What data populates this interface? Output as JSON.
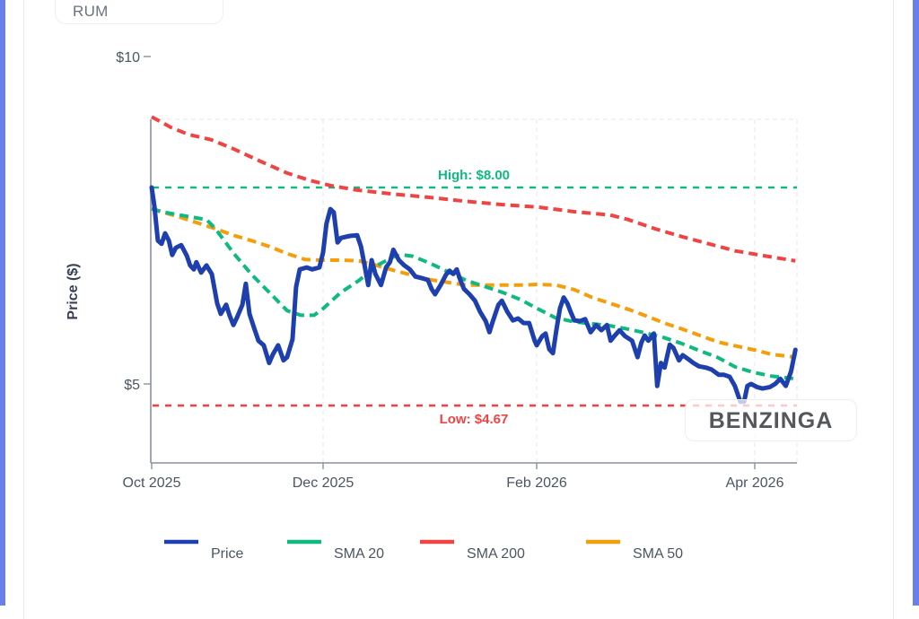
{
  "ticker": "RUM",
  "watermark": "BENZINGA",
  "colors": {
    "price": "#1e40af",
    "sma20": "#10b981",
    "sma200": "#ef4444",
    "sma50": "#f59e0b",
    "frame": "#6b7fea"
  },
  "chart_data": {
    "type": "line",
    "title": "",
    "xlabel": "",
    "ylabel": "Price ($)",
    "x_unit": "days since 2025-10-01",
    "ylim": [
      3.85,
      10.0
    ],
    "xlim": [
      0,
      193
    ],
    "grid": true,
    "legend_position": "bottom",
    "y_ticks": [
      {
        "value": 10,
        "label": "$10"
      },
      {
        "value": 5,
        "label": "$5"
      }
    ],
    "x_ticks": [
      {
        "day": 0,
        "label": "Oct 2025"
      },
      {
        "day": 61,
        "label": "Dec 2025"
      },
      {
        "day": 123,
        "label": "Feb 2026"
      },
      {
        "day": 182,
        "label": "Apr 2026"
      }
    ],
    "reference_lines": [
      {
        "name": "high",
        "label": "High: $8.00",
        "value": 8.0,
        "color": "#10b981"
      },
      {
        "name": "low",
        "label": "Low: $4.67",
        "value": 4.67,
        "color": "#ef4444"
      }
    ],
    "series": [
      {
        "name": "Price",
        "key": "price",
        "style": "solid",
        "points": [
          [
            0,
            8.0
          ],
          [
            1,
            7.71
          ],
          [
            2.2,
            7.19
          ],
          [
            3.5,
            7.14
          ],
          [
            4.8,
            7.3
          ],
          [
            6.1,
            7.19
          ],
          [
            7.3,
            6.97
          ],
          [
            8.6,
            7.08
          ],
          [
            10.5,
            7.12
          ],
          [
            12.5,
            6.96
          ],
          [
            13.7,
            6.81
          ],
          [
            15,
            6.75
          ],
          [
            15.9,
            6.86
          ],
          [
            17.6,
            6.7
          ],
          [
            19.5,
            6.81
          ],
          [
            21.4,
            6.68
          ],
          [
            23.3,
            6.23
          ],
          [
            24.6,
            6.07
          ],
          [
            26.5,
            6.21
          ],
          [
            27.8,
            6.04
          ],
          [
            29.1,
            5.9
          ],
          [
            30.3,
            6.01
          ],
          [
            32.3,
            6.21
          ],
          [
            33.5,
            6.53
          ],
          [
            34.8,
            6.07
          ],
          [
            36.4,
            5.86
          ],
          [
            38,
            5.66
          ],
          [
            39.9,
            5.59
          ],
          [
            41.8,
            5.32
          ],
          [
            43.1,
            5.45
          ],
          [
            45,
            5.59
          ],
          [
            46.9,
            5.36
          ],
          [
            48.2,
            5.41
          ],
          [
            50.1,
            5.68
          ],
          [
            51.4,
            6.48
          ],
          [
            52.7,
            6.75
          ],
          [
            55.2,
            6.78
          ],
          [
            57.1,
            6.75
          ],
          [
            59.7,
            6.78
          ],
          [
            61,
            7.01
          ],
          [
            62,
            7.45
          ],
          [
            63.1,
            7.67
          ],
          [
            64.1,
            7.62
          ],
          [
            65.2,
            7.16
          ],
          [
            66.2,
            7.23
          ],
          [
            68.8,
            7.26
          ],
          [
            70.9,
            7.27
          ],
          [
            72,
            7.1
          ],
          [
            73,
            6.82
          ],
          [
            74.1,
            6.51
          ],
          [
            75.1,
            6.89
          ],
          [
            76.2,
            6.68
          ],
          [
            77.8,
            6.51
          ],
          [
            79.3,
            6.78
          ],
          [
            80.4,
            6.86
          ],
          [
            81.4,
            7.05
          ],
          [
            83,
            6.89
          ],
          [
            84.6,
            6.81
          ],
          [
            86.2,
            6.75
          ],
          [
            87.8,
            6.64
          ],
          [
            89.3,
            6.62
          ],
          [
            91.4,
            6.59
          ],
          [
            92.5,
            6.45
          ],
          [
            93.5,
            6.37
          ],
          [
            95.1,
            6.51
          ],
          [
            96.7,
            6.67
          ],
          [
            97.7,
            6.73
          ],
          [
            98.8,
            6.68
          ],
          [
            99.8,
            6.75
          ],
          [
            100.8,
            6.59
          ],
          [
            101.9,
            6.45
          ],
          [
            103.5,
            6.37
          ],
          [
            105.1,
            6.27
          ],
          [
            106.6,
            6.1
          ],
          [
            108.2,
            5.96
          ],
          [
            109.3,
            5.79
          ],
          [
            110.3,
            5.96
          ],
          [
            111.9,
            6.21
          ],
          [
            112.9,
            6.27
          ],
          [
            114.5,
            6.1
          ],
          [
            116.1,
            5.97
          ],
          [
            117.6,
            6.0
          ],
          [
            119.2,
            5.93
          ],
          [
            120.8,
            5.93
          ],
          [
            122.4,
            5.66
          ],
          [
            123,
            5.59
          ],
          [
            124.5,
            5.73
          ],
          [
            125.4,
            5.77
          ],
          [
            126.4,
            5.53
          ],
          [
            127.4,
            5.47
          ],
          [
            128.3,
            5.81
          ],
          [
            129.3,
            6.15
          ],
          [
            130.3,
            6.32
          ],
          [
            131.3,
            6.23
          ],
          [
            132.2,
            6.1
          ],
          [
            133.2,
            5.97
          ],
          [
            134.7,
            5.96
          ],
          [
            136.1,
            5.99
          ],
          [
            137.6,
            5.79
          ],
          [
            139.1,
            5.9
          ],
          [
            140.5,
            5.82
          ],
          [
            142,
            5.9
          ],
          [
            143,
            5.66
          ],
          [
            144,
            5.73
          ],
          [
            145.4,
            5.82
          ],
          [
            146.9,
            5.73
          ],
          [
            148.8,
            5.66
          ],
          [
            150.3,
            5.41
          ],
          [
            151.3,
            5.63
          ],
          [
            152.2,
            5.74
          ],
          [
            153.2,
            5.66
          ],
          [
            154.7,
            5.77
          ],
          [
            155.6,
            4.97
          ],
          [
            156.6,
            5.32
          ],
          [
            157.6,
            5.25
          ],
          [
            159,
            5.6
          ],
          [
            160,
            5.55
          ],
          [
            161.5,
            5.36
          ],
          [
            162.5,
            5.44
          ],
          [
            164,
            5.38
          ],
          [
            165.4,
            5.32
          ],
          [
            166.9,
            5.27
          ],
          [
            168.8,
            5.25
          ],
          [
            170.3,
            5.22
          ],
          [
            172.3,
            5.14
          ],
          [
            173.7,
            5.14
          ],
          [
            175.2,
            5.11
          ],
          [
            176.6,
            4.97
          ],
          [
            178.1,
            4.73
          ],
          [
            179.1,
            4.73
          ],
          [
            180,
            4.97
          ],
          [
            181,
            5.0
          ],
          [
            182.7,
            4.95
          ],
          [
            184.1,
            4.93
          ],
          [
            186,
            4.95
          ],
          [
            187.5,
            5.0
          ],
          [
            188.9,
            5.08
          ],
          [
            190.4,
            4.97
          ],
          [
            191.8,
            5.19
          ],
          [
            193,
            5.52
          ]
        ]
      },
      {
        "name": "SMA 20",
        "key": "sma20",
        "style": "dashed",
        "points": [
          [
            0,
            7.68
          ],
          [
            3.5,
            7.63
          ],
          [
            9.9,
            7.58
          ],
          [
            19.5,
            7.51
          ],
          [
            22.7,
            7.37
          ],
          [
            29.1,
            7.0
          ],
          [
            35.4,
            6.68
          ],
          [
            41.8,
            6.4
          ],
          [
            48.2,
            6.12
          ],
          [
            53,
            6.05
          ],
          [
            57.8,
            6.05
          ],
          [
            61,
            6.15
          ],
          [
            66.2,
            6.4
          ],
          [
            71.4,
            6.58
          ],
          [
            76.6,
            6.81
          ],
          [
            81.8,
            6.95
          ],
          [
            84.4,
            6.97
          ],
          [
            87,
            6.95
          ],
          [
            92.2,
            6.84
          ],
          [
            97.4,
            6.71
          ],
          [
            102.6,
            6.58
          ],
          [
            107.8,
            6.49
          ],
          [
            113,
            6.4
          ],
          [
            118.2,
            6.29
          ],
          [
            123.2,
            6.15
          ],
          [
            128.1,
            6.01
          ],
          [
            133,
            5.95
          ],
          [
            137.8,
            5.92
          ],
          [
            142.7,
            5.89
          ],
          [
            147.5,
            5.84
          ],
          [
            152.4,
            5.78
          ],
          [
            157.3,
            5.71
          ],
          [
            162.1,
            5.62
          ],
          [
            167,
            5.51
          ],
          [
            171.8,
            5.41
          ],
          [
            176.7,
            5.26
          ],
          [
            181.5,
            5.18
          ],
          [
            186.5,
            5.12
          ],
          [
            193,
            5.08
          ]
        ]
      },
      {
        "name": "SMA 200",
        "key": "sma200",
        "style": "dashed",
        "points": [
          [
            0,
            9.08
          ],
          [
            6.7,
            8.92
          ],
          [
            13.1,
            8.81
          ],
          [
            21.1,
            8.73
          ],
          [
            29.1,
            8.59
          ],
          [
            38.7,
            8.4
          ],
          [
            48.2,
            8.22
          ],
          [
            56.2,
            8.11
          ],
          [
            63.1,
            8.03
          ],
          [
            70.9,
            7.96
          ],
          [
            81.4,
            7.9
          ],
          [
            91.8,
            7.85
          ],
          [
            102.2,
            7.79
          ],
          [
            112.7,
            7.74
          ],
          [
            123.5,
            7.7
          ],
          [
            133.2,
            7.63
          ],
          [
            142.9,
            7.58
          ],
          [
            147.8,
            7.51
          ],
          [
            155,
            7.37
          ],
          [
            162.3,
            7.25
          ],
          [
            169.6,
            7.14
          ],
          [
            176.9,
            7.03
          ],
          [
            184.2,
            6.96
          ],
          [
            193,
            6.88
          ]
        ]
      },
      {
        "name": "SMA 50",
        "key": "sma50",
        "style": "dashed",
        "points": [
          [
            0,
            7.67
          ],
          [
            9.9,
            7.55
          ],
          [
            22.7,
            7.37
          ],
          [
            29.1,
            7.27
          ],
          [
            35.4,
            7.19
          ],
          [
            41.8,
            7.1
          ],
          [
            48.2,
            6.99
          ],
          [
            54.6,
            6.9
          ],
          [
            61,
            6.89
          ],
          [
            66.2,
            6.89
          ],
          [
            71.4,
            6.88
          ],
          [
            76.6,
            6.81
          ],
          [
            81.8,
            6.73
          ],
          [
            87,
            6.66
          ],
          [
            92.2,
            6.59
          ],
          [
            97.4,
            6.55
          ],
          [
            102.6,
            6.51
          ],
          [
            107.8,
            6.51
          ],
          [
            113,
            6.51
          ],
          [
            118.2,
            6.51
          ],
          [
            123.5,
            6.52
          ],
          [
            128.3,
            6.51
          ],
          [
            133.2,
            6.44
          ],
          [
            138,
            6.32
          ],
          [
            142.9,
            6.23
          ],
          [
            147.8,
            6.14
          ],
          [
            152.6,
            6.04
          ],
          [
            157.5,
            5.93
          ],
          [
            162.3,
            5.84
          ],
          [
            167.2,
            5.74
          ],
          [
            172.1,
            5.64
          ],
          [
            176.9,
            5.58
          ],
          [
            181.8,
            5.52
          ],
          [
            186.7,
            5.45
          ],
          [
            193,
            5.41
          ]
        ]
      }
    ]
  }
}
